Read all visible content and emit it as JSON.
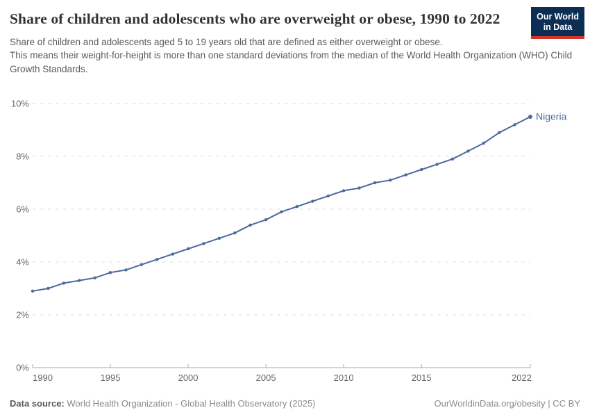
{
  "header": {
    "title": "Share of children and adolescents who are overweight or obese, 1990 to 2022",
    "subtitle_lines": [
      "Share of children and adolescents aged 5 to 19 years old that are defined as either overweight or obese.",
      "This means their weight-for-height is more than one standard deviations from the median of the World Health Organization (WHO) Child Growth Standards."
    ],
    "logo": {
      "line1": "Our World",
      "line2": "in Data",
      "bg_color": "#0d2e54",
      "stripe_color": "#d0342c"
    }
  },
  "chart_data": {
    "type": "line",
    "title": "Share of children and adolescents who are overweight or obese, 1990 to 2022",
    "xlabel": "",
    "ylabel": "",
    "xlim": [
      1990,
      2022
    ],
    "ylim": [
      0,
      10
    ],
    "grid": "horizontal-dashed",
    "legend_position": "end-of-line-label",
    "x": [
      1990,
      1991,
      1992,
      1993,
      1994,
      1995,
      1996,
      1997,
      1998,
      1999,
      2000,
      2001,
      2002,
      2003,
      2004,
      2005,
      2006,
      2007,
      2008,
      2009,
      2010,
      2011,
      2012,
      2013,
      2014,
      2015,
      2016,
      2017,
      2018,
      2019,
      2020,
      2021,
      2022
    ],
    "series": [
      {
        "name": "Nigeria",
        "values": [
          2.9,
          3.0,
          3.2,
          3.3,
          3.4,
          3.6,
          3.7,
          3.9,
          4.1,
          4.3,
          4.5,
          4.7,
          4.9,
          5.1,
          5.4,
          5.6,
          5.9,
          6.1,
          6.3,
          6.5,
          6.7,
          6.8,
          7.0,
          7.1,
          7.3,
          7.5,
          7.7,
          7.9,
          8.2,
          8.5,
          8.9,
          9.2,
          9.5
        ],
        "color": "#4C6A9C"
      }
    ],
    "yticks": [
      {
        "value": 0,
        "label": "0%"
      },
      {
        "value": 2,
        "label": "2%"
      },
      {
        "value": 4,
        "label": "4%"
      },
      {
        "value": 6,
        "label": "6%"
      },
      {
        "value": 8,
        "label": "8%"
      },
      {
        "value": 10,
        "label": "10%"
      }
    ],
    "xticks": [
      {
        "value": 1990,
        "label": "1990"
      },
      {
        "value": 1995,
        "label": "1995"
      },
      {
        "value": 2000,
        "label": "2000"
      },
      {
        "value": 2005,
        "label": "2005"
      },
      {
        "value": 2010,
        "label": "2010"
      },
      {
        "value": 2015,
        "label": "2015"
      },
      {
        "value": 2022,
        "label": "2022"
      }
    ],
    "colors": {
      "grid": "#dcdcdc",
      "axis": "#a8a8a8",
      "tick_label": "#666666"
    }
  },
  "footer": {
    "source_label": "Data source:",
    "source_text": " World Health Organization - Global Health Observatory (2025)",
    "credit": "OurWorldinData.org/obesity | CC BY"
  }
}
